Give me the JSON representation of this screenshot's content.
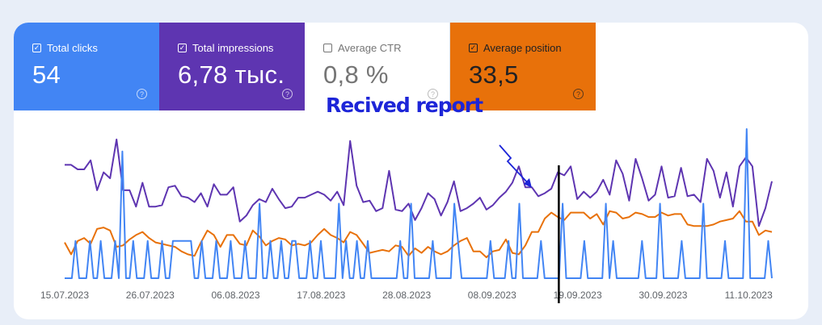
{
  "metrics": {
    "clicks": {
      "label": "Total clicks",
      "value": "54",
      "checked": true,
      "color": "#4285f4"
    },
    "impressions": {
      "label": "Total impressions",
      "value": "6,78 тыс.",
      "checked": true,
      "color": "#5e35b1"
    },
    "ctr": {
      "label": "Average CTR",
      "value": "0,8 %",
      "checked": false
    },
    "position": {
      "label": "Average position",
      "value": "33,5",
      "checked": true,
      "color": "#e8710a"
    }
  },
  "annotation": {
    "text": "Recived report",
    "marker_date": "17.09.2023",
    "color": "#1d25d8"
  },
  "chart_data": {
    "type": "line",
    "x_start": "15.07.2023",
    "x_end": "14.10.2023",
    "xticks": [
      "15.07.2023",
      "26.07.2023",
      "06.08.2023",
      "17.08.2023",
      "28.08.2023",
      "08.09.2023",
      "19.09.2023",
      "30.09.2023",
      "11.10.2023"
    ],
    "grid": false,
    "series": [
      {
        "key": "impressions",
        "color": "#5e35b1",
        "values": [
          76,
          76,
          73,
          73,
          79,
          59,
          71,
          67,
          93,
          59,
          59,
          48,
          64,
          48,
          48,
          49,
          61,
          62,
          55,
          54,
          51,
          57,
          48,
          63,
          56,
          56,
          61,
          38,
          42,
          49,
          53,
          51,
          60,
          53,
          47,
          48,
          54,
          54,
          56,
          58,
          56,
          52,
          58,
          49,
          92,
          62,
          51,
          52,
          45,
          47,
          72,
          46,
          45,
          50,
          39,
          47,
          57,
          53,
          42,
          51,
          65,
          45,
          47,
          50,
          54,
          46,
          49,
          54,
          58,
          64,
          75,
          61,
          61,
          55,
          57,
          60,
          71,
          69,
          75,
          53,
          58,
          54,
          58,
          66,
          56,
          79,
          70,
          52,
          80,
          67,
          52,
          56,
          75,
          54,
          55,
          74,
          55,
          56,
          51,
          80,
          72,
          54,
          71,
          48,
          75,
          81,
          75,
          35,
          47,
          65
        ]
      },
      {
        "key": "position",
        "color": "#e8710a",
        "values": [
          24,
          16,
          25,
          27,
          23,
          33,
          34,
          32,
          21,
          22,
          26,
          29,
          31,
          27,
          24,
          23,
          22,
          21,
          18,
          16,
          15,
          24,
          32,
          29,
          21,
          29,
          29,
          23,
          22,
          32,
          28,
          22,
          25,
          27,
          26,
          22,
          23,
          22,
          24,
          29,
          33,
          29,
          27,
          24,
          31,
          29,
          23,
          17,
          18,
          19,
          18,
          22,
          21,
          15,
          20,
          17,
          21,
          18,
          16,
          18,
          22,
          25,
          27,
          18,
          18,
          14,
          18,
          19,
          26,
          17,
          16,
          22,
          31,
          31,
          40,
          44,
          41,
          39,
          44,
          44,
          44,
          40,
          43,
          36,
          45,
          44,
          40,
          41,
          44,
          43,
          41,
          41,
          44,
          42,
          43,
          43,
          36,
          35,
          35,
          35,
          36,
          38,
          39,
          40,
          45,
          38,
          38,
          29,
          32,
          31
        ]
      },
      {
        "key": "clicks",
        "color": "#4285f4",
        "values": [
          0,
          0,
          0,
          25,
          0,
          0,
          0,
          25,
          0,
          0,
          25,
          0,
          0,
          0,
          25,
          0,
          85,
          0,
          0,
          25,
          0,
          0,
          0,
          25,
          0,
          0,
          0,
          25,
          0,
          0,
          25,
          25,
          25,
          25,
          25,
          25,
          0,
          0,
          25,
          0,
          0,
          0,
          25,
          0,
          0,
          0,
          25,
          0,
          0,
          0,
          25,
          0,
          0,
          0,
          50,
          0,
          0,
          25,
          0,
          0,
          25,
          0,
          0,
          25,
          25,
          0,
          0,
          0,
          25,
          0,
          0,
          25,
          0,
          0,
          0,
          0,
          50,
          0,
          25,
          0,
          0,
          25,
          0,
          0,
          25,
          0,
          0,
          0,
          0,
          0,
          0,
          0,
          0,
          25,
          0,
          0,
          50,
          0,
          0,
          0,
          0,
          0,
          25,
          0,
          0,
          0,
          0,
          0,
          50,
          25,
          0,
          0,
          0,
          0,
          0,
          0,
          0,
          0,
          25,
          0,
          0,
          0,
          0,
          25,
          0,
          0,
          50,
          0,
          0,
          0,
          0,
          0,
          25,
          0,
          0,
          0,
          0,
          0,
          50,
          0,
          0,
          0,
          0,
          0,
          25,
          0,
          0,
          0,
          0,
          0,
          50,
          0,
          25,
          0,
          0,
          0,
          0,
          0,
          0,
          0,
          25,
          0,
          0,
          0,
          0,
          50,
          0,
          0,
          0,
          0,
          0,
          25,
          0,
          0,
          0,
          0,
          0,
          50,
          0,
          0,
          0,
          0,
          0,
          25,
          0,
          0,
          0,
          0,
          0,
          100,
          0,
          0,
          0,
          0,
          0,
          25,
          0
        ]
      }
    ]
  }
}
